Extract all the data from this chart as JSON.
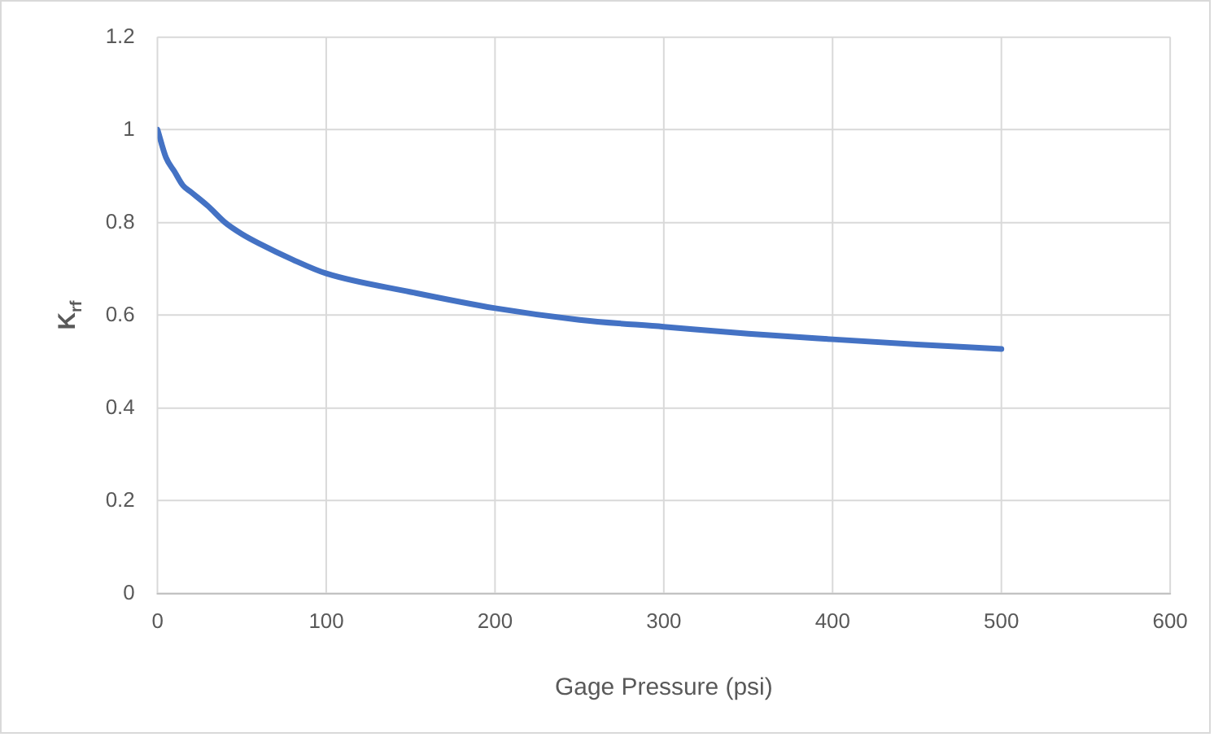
{
  "chart_data": {
    "type": "line",
    "xlabel": "Gage Pressure (psi)",
    "ylabel": "K$_{rf}$",
    "x": [
      0,
      5,
      10,
      15,
      20,
      30,
      40,
      50,
      60,
      80,
      100,
      150,
      200,
      250,
      300,
      350,
      400,
      450,
      500
    ],
    "series": [
      {
        "color": "#4472c4",
        "values": [
          1.0,
          0.94,
          0.91,
          0.88,
          0.865,
          0.835,
          0.8,
          0.775,
          0.755,
          0.72,
          0.69,
          0.65,
          0.615,
          0.59,
          0.575,
          0.56,
          0.548,
          0.537,
          0.527
        ]
      }
    ],
    "xlim": [
      0,
      600
    ],
    "xticks": [
      0,
      100,
      200,
      300,
      400,
      500,
      600
    ],
    "ylim": [
      0,
      1.2
    ],
    "yticks": [
      0,
      0.2,
      0.4,
      0.6,
      0.8,
      1,
      1.2
    ],
    "grid": true,
    "marker": "none",
    "line_style": "solid",
    "legend": false
  }
}
